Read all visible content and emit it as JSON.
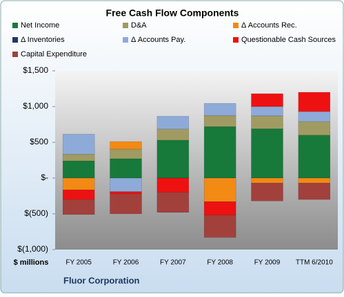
{
  "chart_data": {
    "type": "bar",
    "stacked": true,
    "title": "Free Cash Flow Components",
    "y_label": "$ millions",
    "footer": "Fluor Corporation",
    "categories": [
      "FY 2005",
      "FY 2006",
      "FY 2007",
      "FY 2008",
      "FY 2009",
      "TTM 6/2010"
    ],
    "series": [
      {
        "name": "Net Income",
        "color": "#177a3a",
        "values": [
          240,
          270,
          530,
          720,
          690,
          600
        ]
      },
      {
        "name": "D&A",
        "color": "#a09b62",
        "values": [
          95,
          135,
          155,
          155,
          180,
          190
        ]
      },
      {
        "name": "Δ Accounts Rec.",
        "color": "#f28a14",
        "values": [
          -165,
          105,
          0,
          -330,
          -70,
          -70
        ]
      },
      {
        "name": "Δ Inventories",
        "color": "#1f3864",
        "values": [
          0,
          0,
          0,
          0,
          0,
          0
        ]
      },
      {
        "name": "Δ Accounts Pay.",
        "color": "#8eaad8",
        "values": [
          280,
          -190,
          180,
          170,
          130,
          140
        ]
      },
      {
        "name": "Questionable Cash Sources",
        "color": "#ee1111",
        "values": [
          -135,
          -30,
          -200,
          -190,
          180,
          270
        ]
      },
      {
        "name": "Capital Expenditure",
        "color": "#a2403c",
        "values": [
          -210,
          -280,
          -280,
          -310,
          -250,
          -230
        ]
      }
    ],
    "ylim": [
      -1000,
      1500
    ],
    "yticks": [
      {
        "value": 1500,
        "label": "$1,500"
      },
      {
        "value": 1000,
        "label": "$1,000"
      },
      {
        "value": 500,
        "label": "$500"
      },
      {
        "value": 0,
        "label": "$-"
      },
      {
        "value": -500,
        "label": "$(500)"
      },
      {
        "value": -1000,
        "label": "$(1,000)"
      }
    ]
  }
}
